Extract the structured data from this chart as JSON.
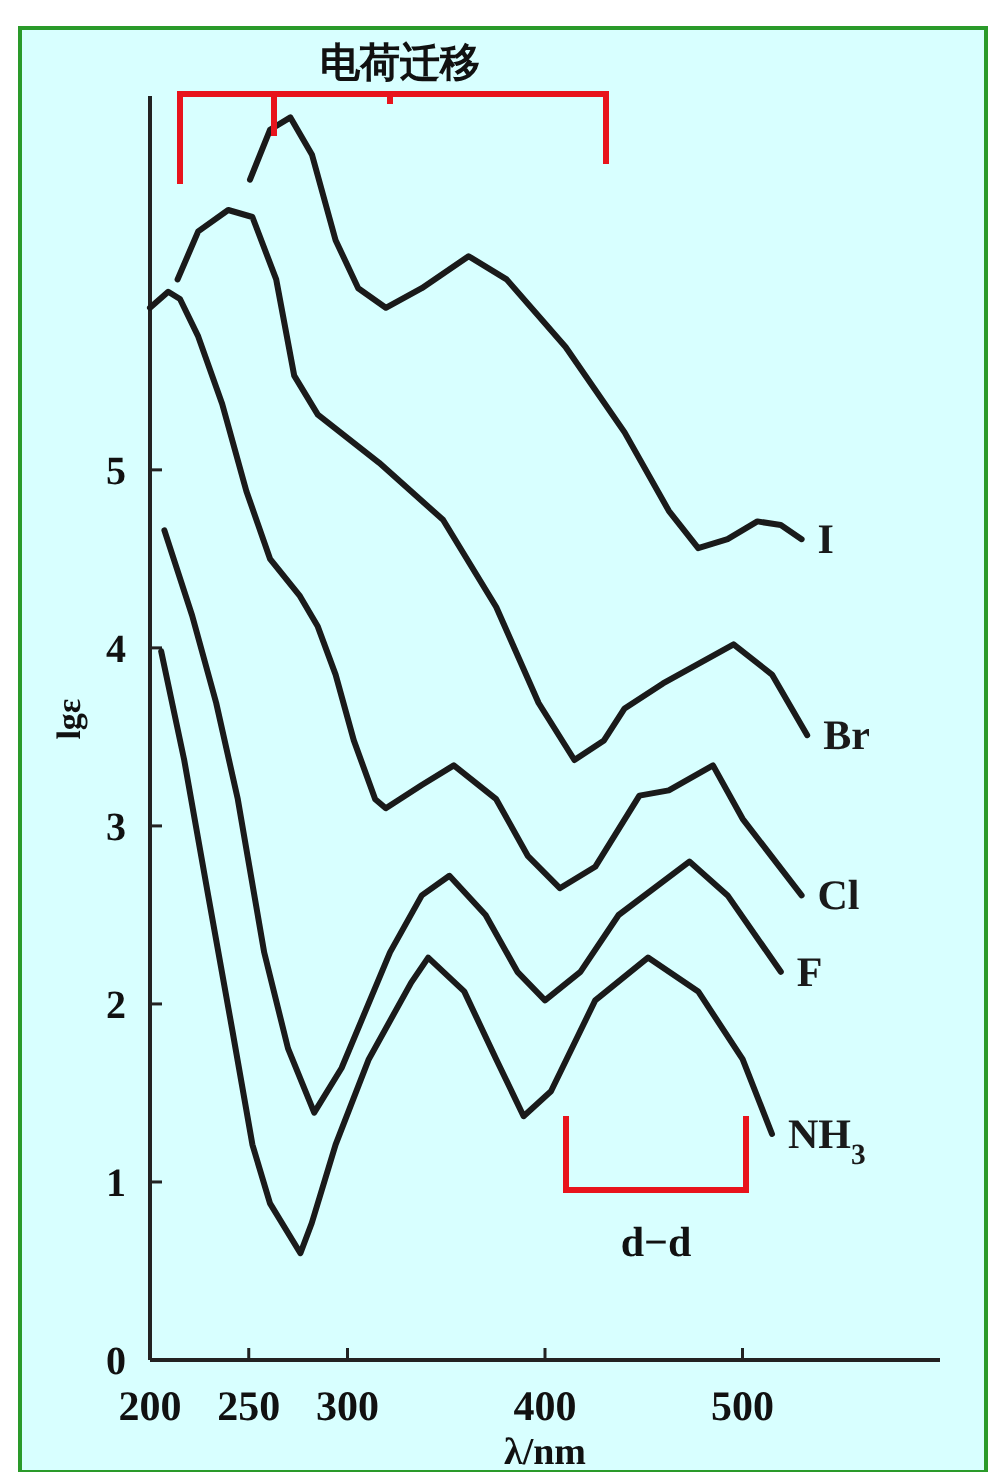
{
  "chart_data": {
    "type": "line",
    "xlabel": "λ/nm",
    "ylabel": "lgε",
    "xlim": [
      200,
      600
    ],
    "ylim": [
      0,
      7.1
    ],
    "xticks": [
      200,
      250,
      300,
      400,
      500
    ],
    "yticks": [
      0,
      1,
      2,
      3,
      4,
      5
    ],
    "series": [
      {
        "name": "I",
        "color": "#1a1a1a",
        "x": [
          250.6,
          260.8,
          271.1,
          282,
          294,
          305.4,
          319.4,
          337.6,
          361.3,
          380.6,
          410.4,
          440.3,
          462.7,
          477.6,
          492.5,
          507.5,
          519.4,
          529.9
        ],
        "values": [
          6.63,
          6.91,
          6.98,
          6.77,
          6.29,
          6.02,
          5.91,
          6.02,
          6.2,
          6.07,
          5.69,
          5.21,
          4.77,
          4.56,
          4.61,
          4.71,
          4.69,
          4.61
        ]
      },
      {
        "name": "Br",
        "color": "#1a1a1a",
        "x": [
          214,
          224.4,
          239.6,
          251.8,
          263.9,
          273,
          285,
          316.1,
          348.4,
          375.3,
          396.8,
          414.9,
          429.9,
          440.3,
          459.7,
          495.5,
          514.9,
          532.8
        ],
        "values": [
          6.07,
          6.34,
          6.46,
          6.42,
          6.07,
          5.53,
          5.31,
          5.04,
          4.72,
          4.23,
          3.69,
          3.37,
          3.48,
          3.66,
          3.8,
          4.02,
          3.85,
          3.51
        ]
      },
      {
        "name": "Cl",
        "color": "#1a1a1a",
        "x": [
          200,
          209.2,
          215.2,
          224.4,
          236.6,
          248.8,
          260.8,
          275.9,
          285,
          294,
          303.2,
          314,
          319.4,
          337.6,
          353.8,
          375.3,
          391.4,
          407.5,
          425.4,
          447.8,
          462.7,
          485.1,
          500,
          529.9
        ],
        "values": [
          5.91,
          6.0,
          5.96,
          5.75,
          5.37,
          4.88,
          4.5,
          4.29,
          4.12,
          3.85,
          3.48,
          3.15,
          3.1,
          3.23,
          3.34,
          3.15,
          2.83,
          2.65,
          2.77,
          3.17,
          3.2,
          3.34,
          3.04,
          2.61
        ]
      },
      {
        "name": "F",
        "color": "#1a1a1a",
        "x": [
          207.3,
          221.4,
          233.5,
          244.5,
          249.4,
          257.8,
          269.9,
          283.1,
          297,
          321.5,
          337.6,
          351.6,
          369.9,
          386,
          400,
          417.9,
          437.3,
          473.1,
          492.5,
          519.4
        ],
        "values": [
          4.66,
          4.18,
          3.69,
          3.15,
          2.83,
          2.29,
          1.75,
          1.39,
          1.64,
          2.29,
          2.61,
          2.72,
          2.5,
          2.18,
          2.02,
          2.18,
          2.5,
          2.8,
          2.61,
          2.18
        ]
      },
      {
        "name": "NH$_{3}$",
        "color": "#1a1a1a",
        "x": [
          205.7,
          217.3,
          229.5,
          241.7,
          251.8,
          260.8,
          276.2,
          281.9,
          294,
          310.8,
          332.3,
          340.9,
          359.1,
          375.3,
          389.2,
          403,
          425.4,
          452.2,
          477.6,
          500,
          514.9
        ],
        "values": [
          3.98,
          3.37,
          2.61,
          1.85,
          1.21,
          0.88,
          0.6,
          0.77,
          1.21,
          1.69,
          2.12,
          2.26,
          2.07,
          1.69,
          1.37,
          1.51,
          2.02,
          2.26,
          2.07,
          1.69,
          1.27
        ]
      }
    ],
    "annotations": [
      "电荷迁移",
      "d−d"
    ]
  }
}
